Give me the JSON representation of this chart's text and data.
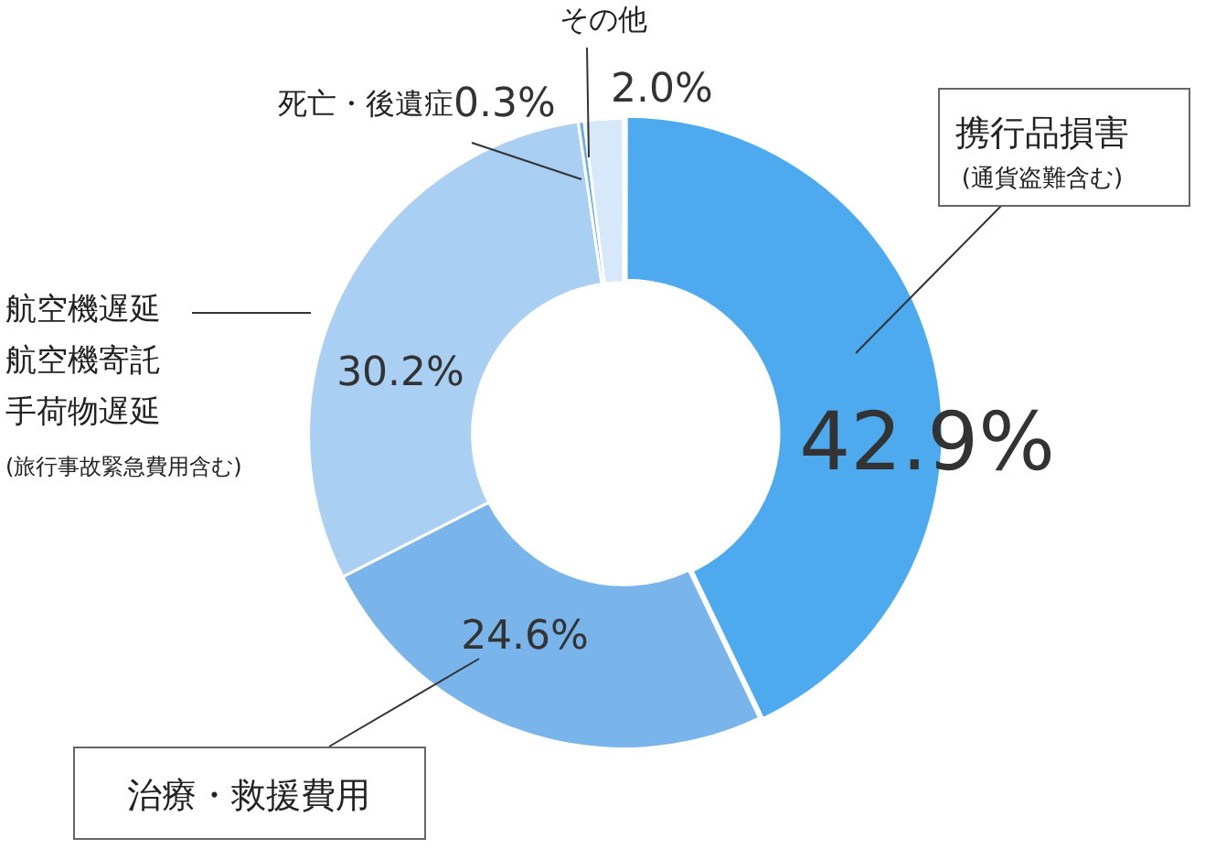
{
  "chart_data": {
    "type": "donut",
    "categories": [
      "携行品損害\n(通貨盗難含む)",
      "治療・救援費用",
      "航空機遅延航空機寄託手荷物遅延\n(旅行事故緊急費用含む)",
      "死亡・後遺症",
      "その他"
    ],
    "values": [
      42.9,
      24.6,
      30.2,
      0.3,
      2.0
    ],
    "colors": [
      "#4eaaef",
      "#79b5ea",
      "#a9cff2",
      "#6aaee9",
      "#d6e8fa"
    ],
    "value_labels": [
      "42.9%",
      "24.6%",
      "30.2%",
      "0.3%",
      "2.0%"
    ],
    "legend": false
  }
}
